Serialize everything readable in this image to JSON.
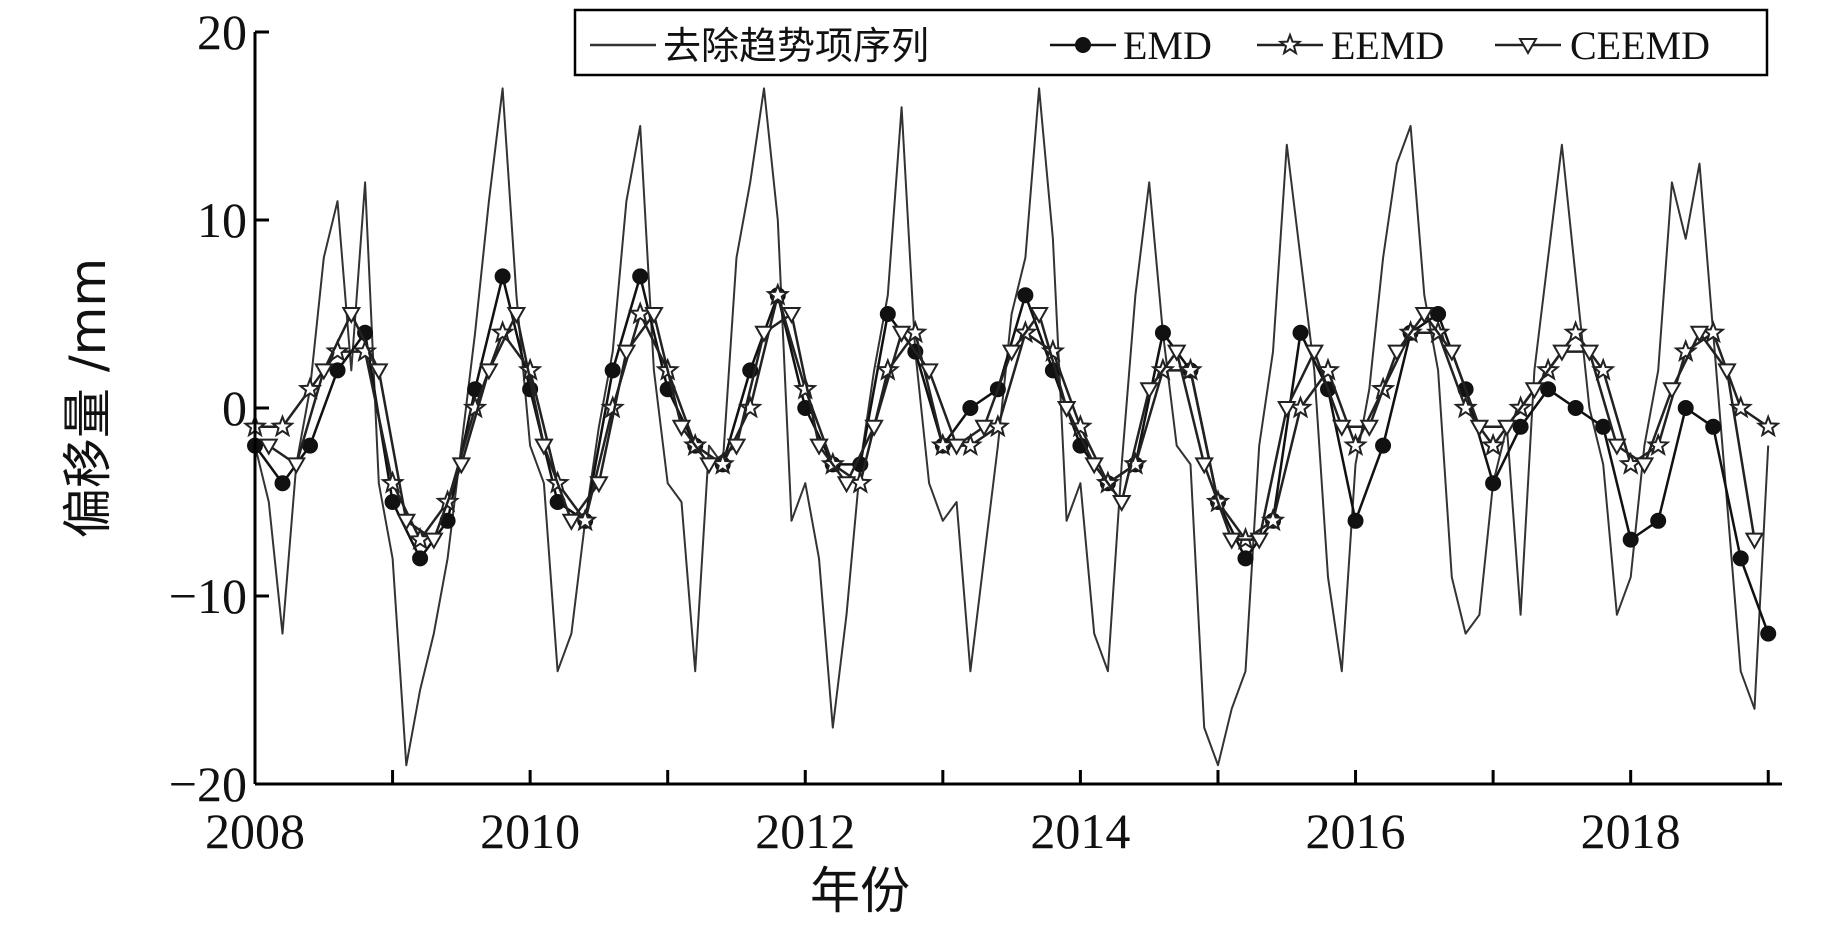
{
  "chart_data": {
    "type": "line",
    "xlabel": "年份",
    "ylabel": "偏移量 /mm",
    "xlim": [
      2008,
      2019.1
    ],
    "ylim": [
      -20,
      20
    ],
    "x_ticks": [
      2008,
      2010,
      2012,
      2014,
      2016,
      2018
    ],
    "x_ticks_minor": [
      2009,
      2011,
      2013,
      2015,
      2017,
      2019
    ],
    "y_ticks": [
      -20,
      -10,
      0,
      10,
      20
    ],
    "y_tick_labels": [
      "−20",
      "−10",
      "0",
      "10",
      "20"
    ],
    "grid": false,
    "legend_position": "top-right",
    "series": [
      {
        "name": "去除趋势项序列",
        "marker": "none",
        "color": "#333333",
        "x": [
          2008.0,
          2008.1,
          2008.2,
          2008.3,
          2008.4,
          2008.5,
          2008.6,
          2008.7,
          2008.8,
          2008.9,
          2009.0,
          2009.1,
          2009.2,
          2009.3,
          2009.4,
          2009.5,
          2009.6,
          2009.7,
          2009.8,
          2009.9,
          2010.0,
          2010.1,
          2010.2,
          2010.3,
          2010.4,
          2010.5,
          2010.6,
          2010.7,
          2010.8,
          2010.9,
          2011.0,
          2011.1,
          2011.2,
          2011.3,
          2011.4,
          2011.5,
          2011.6,
          2011.7,
          2011.8,
          2011.9,
          2012.0,
          2012.1,
          2012.2,
          2012.3,
          2012.4,
          2012.5,
          2012.6,
          2012.7,
          2012.8,
          2012.9,
          2013.0,
          2013.1,
          2013.2,
          2013.3,
          2013.4,
          2013.5,
          2013.6,
          2013.7,
          2013.8,
          2013.9,
          2014.0,
          2014.1,
          2014.2,
          2014.3,
          2014.4,
          2014.5,
          2014.6,
          2014.7,
          2014.8,
          2014.9,
          2015.0,
          2015.1,
          2015.2,
          2015.3,
          2015.4,
          2015.5,
          2015.6,
          2015.7,
          2015.8,
          2015.9,
          2016.0,
          2016.1,
          2016.2,
          2016.3,
          2016.4,
          2016.5,
          2016.6,
          2016.7,
          2016.8,
          2016.9,
          2017.0,
          2017.1,
          2017.2,
          2017.3,
          2017.4,
          2017.5,
          2017.6,
          2017.7,
          2017.8,
          2017.9,
          2018.0,
          2018.1,
          2018.2,
          2018.3,
          2018.4,
          2018.5,
          2018.6,
          2018.7,
          2018.8,
          2018.9,
          2019.0
        ],
        "y": [
          -2,
          -5,
          -12,
          -3,
          1,
          8,
          11,
          2,
          12,
          -4,
          -8,
          -19,
          -15,
          -12,
          -8,
          -2,
          4,
          11,
          17,
          6,
          -2,
          -4,
          -14,
          -12,
          -6,
          -1,
          3,
          11,
          15,
          2,
          -4,
          -5,
          -14,
          -2,
          -3,
          8,
          12,
          17,
          10,
          -6,
          -4,
          -8,
          -17,
          -11,
          -3,
          2,
          6,
          16,
          3,
          -4,
          -6,
          -5,
          -14,
          -8,
          -2,
          5,
          8,
          17,
          9,
          -6,
          -4,
          -12,
          -14,
          -3,
          6,
          12,
          4,
          -2,
          -3,
          -17,
          -19,
          -16,
          -14,
          -2,
          3,
          14,
          8,
          2,
          -9,
          -14,
          -3,
          1,
          8,
          13,
          15,
          6,
          2,
          -9,
          -12,
          -11,
          -4,
          -1,
          -11,
          2,
          8,
          14,
          7,
          0,
          -3,
          -11,
          -9,
          -2,
          2,
          12,
          9,
          13,
          4,
          -5,
          -14,
          -16,
          -2
        ]
      },
      {
        "name": "EMD",
        "marker": "filled-circle",
        "color": "#111111",
        "x": [
          2008.0,
          2008.2,
          2008.4,
          2008.6,
          2008.8,
          2009.0,
          2009.2,
          2009.4,
          2009.6,
          2009.8,
          2010.0,
          2010.2,
          2010.4,
          2010.6,
          2010.8,
          2011.0,
          2011.2,
          2011.4,
          2011.6,
          2011.8,
          2012.0,
          2012.2,
          2012.4,
          2012.6,
          2012.8,
          2013.0,
          2013.2,
          2013.4,
          2013.6,
          2013.8,
          2014.0,
          2014.2,
          2014.4,
          2014.6,
          2014.8,
          2015.0,
          2015.2,
          2015.4,
          2015.6,
          2015.8,
          2016.0,
          2016.2,
          2016.4,
          2016.6,
          2016.8,
          2017.0,
          2017.2,
          2017.4,
          2017.6,
          2017.8,
          2018.0,
          2018.2,
          2018.4,
          2018.6,
          2018.8,
          2019.0
        ],
        "y": [
          -2,
          -4,
          -2,
          2,
          4,
          -5,
          -8,
          -6,
          1,
          7,
          1,
          -5,
          -6,
          2,
          7,
          1,
          -2,
          -3,
          2,
          6,
          0,
          -3,
          -3,
          5,
          3,
          -2,
          0,
          1,
          6,
          2,
          -2,
          -4,
          -3,
          4,
          2,
          -5,
          -8,
          -6,
          4,
          1,
          -6,
          -2,
          4,
          5,
          1,
          -4,
          -1,
          1,
          0,
          -1,
          -7,
          -6,
          0,
          -1,
          -8,
          -12
        ]
      },
      {
        "name": "EEMD",
        "marker": "open-star",
        "color": "#222222",
        "x": [
          2008.0,
          2008.2,
          2008.4,
          2008.6,
          2008.8,
          2009.0,
          2009.2,
          2009.4,
          2009.6,
          2009.8,
          2010.0,
          2010.2,
          2010.4,
          2010.6,
          2010.8,
          2011.0,
          2011.2,
          2011.4,
          2011.6,
          2011.8,
          2012.0,
          2012.2,
          2012.4,
          2012.6,
          2012.8,
          2013.0,
          2013.2,
          2013.4,
          2013.6,
          2013.8,
          2014.0,
          2014.2,
          2014.4,
          2014.6,
          2014.8,
          2015.0,
          2015.2,
          2015.4,
          2015.6,
          2015.8,
          2016.0,
          2016.2,
          2016.4,
          2016.6,
          2016.8,
          2017.0,
          2017.2,
          2017.4,
          2017.6,
          2017.8,
          2018.0,
          2018.2,
          2018.4,
          2018.6,
          2018.8,
          2019.0
        ],
        "y": [
          -1,
          -1,
          1,
          3,
          3,
          -4,
          -7,
          -5,
          0,
          4,
          2,
          -4,
          -6,
          0,
          5,
          2,
          -2,
          -3,
          0,
          6,
          1,
          -3,
          -4,
          2,
          4,
          -2,
          -2,
          -1,
          4,
          3,
          -1,
          -4,
          -3,
          2,
          2,
          -5,
          -7,
          -6,
          0,
          2,
          -2,
          1,
          4,
          4,
          0,
          -2,
          0,
          2,
          4,
          2,
          -3,
          -2,
          3,
          4,
          0,
          -1
        ]
      },
      {
        "name": "CEEMD",
        "marker": "open-triangle-down",
        "color": "#222222",
        "x": [
          2008.1,
          2008.3,
          2008.5,
          2008.7,
          2008.9,
          2009.1,
          2009.3,
          2009.5,
          2009.7,
          2009.9,
          2010.1,
          2010.3,
          2010.5,
          2010.7,
          2010.9,
          2011.1,
          2011.3,
          2011.5,
          2011.7,
          2011.9,
          2012.1,
          2012.3,
          2012.5,
          2012.7,
          2012.9,
          2013.1,
          2013.3,
          2013.5,
          2013.7,
          2013.9,
          2014.1,
          2014.3,
          2014.5,
          2014.7,
          2014.9,
          2015.1,
          2015.3,
          2015.5,
          2015.7,
          2015.9,
          2016.1,
          2016.3,
          2016.5,
          2016.7,
          2016.9,
          2017.1,
          2017.3,
          2017.5,
          2017.7,
          2017.9,
          2018.1,
          2018.3,
          2018.5,
          2018.7,
          2018.9
        ],
        "y": [
          -2,
          -3,
          2,
          5,
          2,
          -6,
          -7,
          -3,
          2,
          5,
          -2,
          -6,
          -4,
          3,
          5,
          -1,
          -3,
          -2,
          4,
          5,
          -2,
          -4,
          -1,
          4,
          2,
          -2,
          -1,
          3,
          5,
          0,
          -3,
          -5,
          1,
          3,
          -3,
          -7,
          -7,
          0,
          3,
          -1,
          -1,
          3,
          5,
          3,
          -1,
          -1,
          1,
          3,
          3,
          -2,
          -3,
          1,
          4,
          2,
          -7
        ]
      }
    ]
  }
}
